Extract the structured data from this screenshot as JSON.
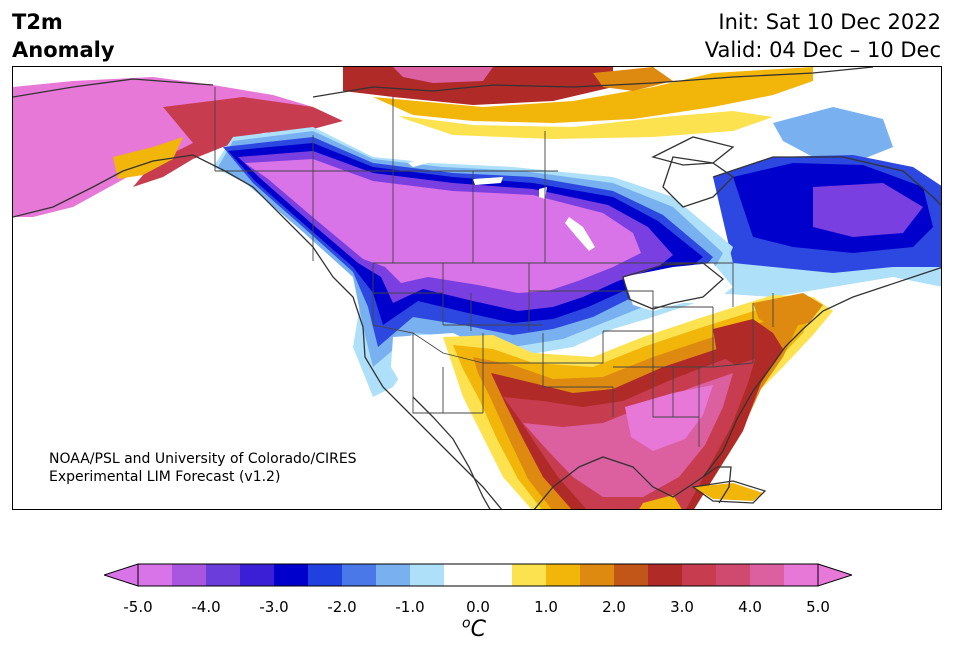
{
  "header": {
    "title_line1": "T2m",
    "title_line2": "Anomaly",
    "init": "Init: Sat 10 Dec 2022",
    "valid": "Valid: 04 Dec – 10 Dec"
  },
  "credit": {
    "line1": "NOAA/PSL and University of Colorado/CIRES",
    "line2": "Experimental LIM Forecast (v1.2)"
  },
  "colorbar": {
    "unit_label": "oC",
    "ticks": [
      "-5.0",
      "-4.0",
      "-3.0",
      "-2.0",
      "-1.0",
      "0.0",
      "1.0",
      "2.0",
      "3.0",
      "4.0",
      "5.0"
    ],
    "colors": [
      "#d873e8",
      "#a856e0",
      "#6b3ddb",
      "#3b1fd6",
      "#0000cc",
      "#2040e0",
      "#4a78e8",
      "#78b0f0",
      "#aee0fa",
      "#ffffff",
      "#ffffff",
      "#fde24f",
      "#f2b50a",
      "#de8a10",
      "#c25518",
      "#b02a28",
      "#c83c50",
      "#d04a70",
      "#dc5fa0",
      "#e878d8"
    ],
    "min_color": "#d873e8",
    "max_color": "#e878d8"
  },
  "map_colors": {
    "very_cold": "#d873e8",
    "cold_violet": "#7a3fe0",
    "deep_blue": "#0000cc",
    "blue": "#2c48e0",
    "light_blue": "#78b0f0",
    "pale_blue": "#aee0fa",
    "neutral": "#ffffff",
    "yellow": "#fde24f",
    "gold": "#f2b50a",
    "orange": "#de8a10",
    "red": "#b02a28",
    "crimson": "#c83c50",
    "pink": "#dc5fa0",
    "hot_pink": "#e878d8"
  }
}
